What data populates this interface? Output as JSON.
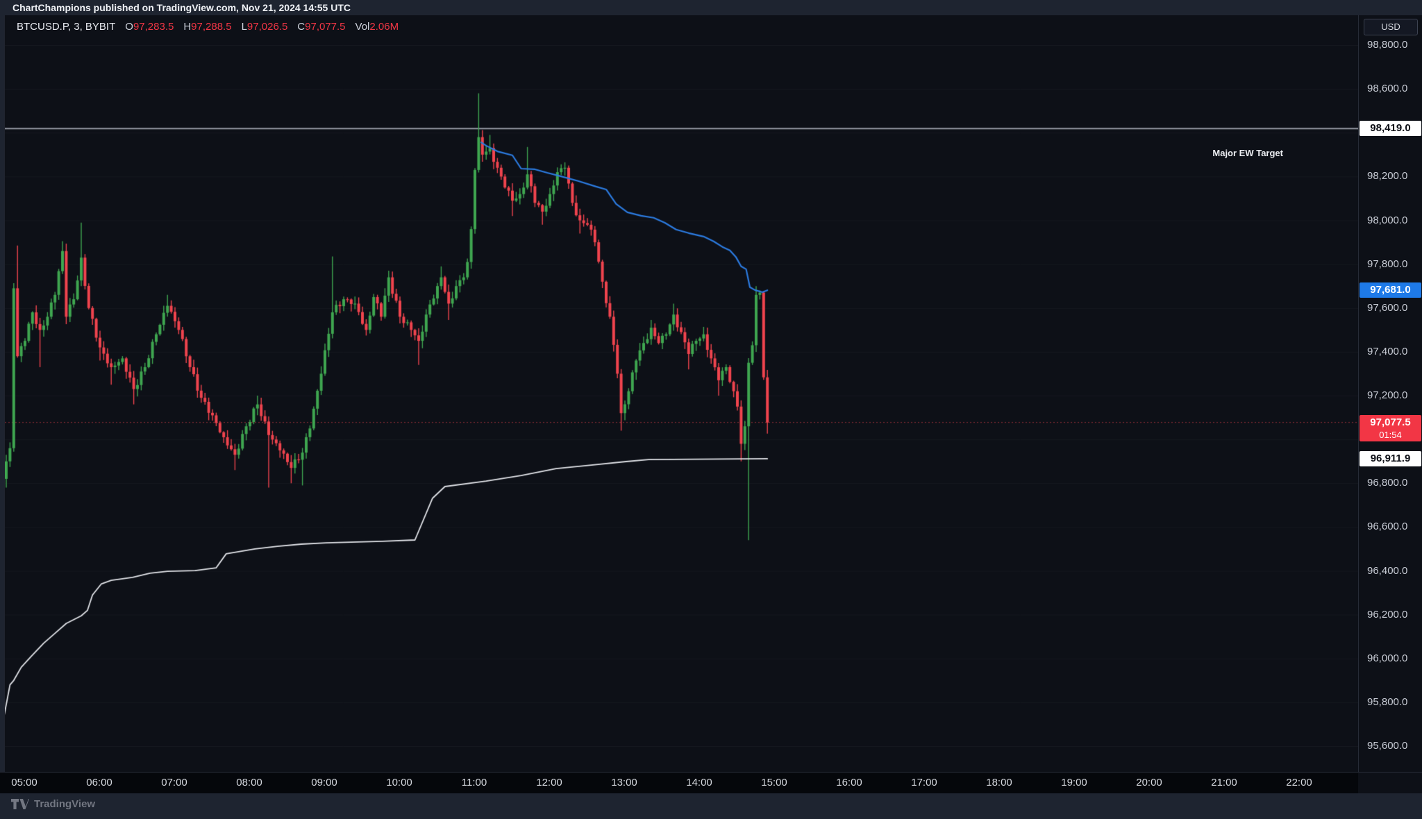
{
  "publish_bar": {
    "text": "ChartChampions published on TradingView.com, Nov 21, 2024 14:55 UTC"
  },
  "symbol_line": {
    "title": "BTCUSD.P, 3, BYBIT",
    "ohlc": [
      {
        "label": "O",
        "value": "97,283.5"
      },
      {
        "label": "H",
        "value": "97,288.5"
      },
      {
        "label": "L",
        "value": "97,026.5"
      },
      {
        "label": "C",
        "value": "97,077.5"
      }
    ],
    "vol_label": "Vol",
    "vol_value": "2.06M"
  },
  "annotations": {
    "ew_target_label": "Major EW Target"
  },
  "price_axis": {
    "currency": "USD",
    "ticks": [
      {
        "text": "98,800.0",
        "price": 98800
      },
      {
        "text": "98,600.0",
        "price": 98600
      },
      {
        "text": "98,200.0",
        "price": 98200
      },
      {
        "text": "98,000.0",
        "price": 98000
      },
      {
        "text": "97,800.0",
        "price": 97800
      },
      {
        "text": "97,600.0",
        "price": 97600
      },
      {
        "text": "97,400.0",
        "price": 97400
      },
      {
        "text": "97,200.0",
        "price": 97200
      },
      {
        "text": "96,800.0",
        "price": 96800
      },
      {
        "text": "96,600.0",
        "price": 96600
      },
      {
        "text": "96,400.0",
        "price": 96400
      },
      {
        "text": "96,200.0",
        "price": 96200
      },
      {
        "text": "96,000.0",
        "price": 96000
      },
      {
        "text": "95,800.0",
        "price": 95800
      },
      {
        "text": "95,600.0",
        "price": 95600
      }
    ],
    "badges": [
      {
        "name": "ew-target-price",
        "text": "98,419.0",
        "price": 98419,
        "bg": "#ffffff",
        "fg": "#0c0e15"
      },
      {
        "name": "ma-price",
        "text": "97,681.0",
        "price": 97681,
        "bg": "#1e7ae8",
        "fg": "#ffffff"
      },
      {
        "name": "last-price",
        "text": "97,077.5",
        "price": 97077.5,
        "bg": "#f23645",
        "fg": "#ffffff",
        "countdown": "01:54"
      },
      {
        "name": "oi-line-price",
        "text": "96,911.9",
        "price": 96911.9,
        "bg": "#ffffff",
        "fg": "#0c0e15"
      }
    ]
  },
  "time_axis": {
    "labels": [
      "05:00",
      "06:00",
      "07:00",
      "08:00",
      "09:00",
      "10:00",
      "11:00",
      "12:00",
      "13:00",
      "14:00",
      "15:00",
      "16:00",
      "17:00",
      "18:00",
      "19:00",
      "20:00",
      "21:00",
      "22:00"
    ]
  },
  "attribution": {
    "text": "TradingView"
  },
  "chart_data": {
    "type": "candlestick",
    "symbol": "BTCUSD.P",
    "exchange": "BYBIT",
    "interval_minutes": 3,
    "session_start": "04:45",
    "session_end": "14:54",
    "x_visible_hours": [
      "05:00",
      "23:00"
    ],
    "ylim": [
      95530,
      99005
    ],
    "grid_step": 200,
    "first_open": 96820,
    "last_candle_ohlc": {
      "open": 97283.5,
      "high": 97288.5,
      "low": 97026.5,
      "close": 97077.5
    },
    "volume_display": "2.06M",
    "levels": {
      "ew_target": 98419,
      "ew_target_label": "Major EW Target",
      "last_price": 97077.5
    },
    "colors": {
      "up": "#3fa650",
      "down": "#f0444e",
      "ma": "#2c7be0",
      "oi": "#e3e5ea",
      "ew_line": "#9498a3",
      "last_price_line": "rgba(240,68,78,0.6)"
    },
    "price_anchors": [
      [
        "04:45",
        96900,
        null,
        96780
      ],
      [
        "04:48",
        96960
      ],
      [
        "04:51",
        97690
      ],
      [
        "04:54",
        97380,
        97885
      ],
      [
        "05:00",
        97450
      ],
      [
        "05:06",
        97580
      ],
      [
        "05:12",
        97500,
        null,
        97330
      ],
      [
        "05:18",
        97560
      ],
      [
        "05:24",
        97660
      ],
      [
        "05:30",
        97860,
        97905
      ],
      [
        "05:33",
        97560
      ],
      [
        "05:39",
        97640
      ],
      [
        "05:45",
        97830,
        97990
      ],
      [
        "05:51",
        97600
      ],
      [
        "06:00",
        97420,
        null,
        97360
      ],
      [
        "06:09",
        97330,
        null,
        97250
      ],
      [
        "06:18",
        97370
      ],
      [
        "06:27",
        97230,
        null,
        97160
      ],
      [
        "06:36",
        97330
      ],
      [
        "06:45",
        97480
      ],
      [
        "06:54",
        97610,
        97660
      ],
      [
        "07:03",
        97500
      ],
      [
        "07:12",
        97330
      ],
      [
        "07:21",
        97190
      ],
      [
        "07:30",
        97110
      ],
      [
        "07:39",
        97010
      ],
      [
        "07:48",
        96930,
        null,
        96860
      ],
      [
        "07:57",
        97060
      ],
      [
        "08:06",
        97160,
        97200
      ],
      [
        "08:15",
        97020,
        null,
        96780
      ],
      [
        "08:24",
        96950
      ],
      [
        "08:33",
        96870,
        null,
        96800
      ],
      [
        "08:42",
        96940,
        null,
        96790
      ],
      [
        "08:48",
        97050
      ],
      [
        "08:57",
        97300
      ],
      [
        "09:06",
        97580,
        97835
      ],
      [
        "09:15",
        97640
      ],
      [
        "09:24",
        97620
      ],
      [
        "09:33",
        97500
      ],
      [
        "09:39",
        97650
      ],
      [
        "09:45",
        97560
      ],
      [
        "09:51",
        97740,
        97765
      ],
      [
        "10:00",
        97560
      ],
      [
        "10:09",
        97500
      ],
      [
        "10:15",
        97450,
        null,
        97340
      ],
      [
        "10:21",
        97570
      ],
      [
        "10:30",
        97700
      ],
      [
        "10:33",
        97740,
        97790
      ],
      [
        "10:39",
        97620,
        null,
        97545
      ],
      [
        "10:45",
        97700
      ],
      [
        "10:51",
        97740
      ],
      [
        "10:54",
        97810
      ],
      [
        "10:57",
        97960
      ],
      [
        "11:00",
        98230
      ],
      [
        "11:03",
        98380,
        98580
      ],
      [
        "11:06",
        98300
      ],
      [
        "11:12",
        98330,
        98390
      ],
      [
        "11:18",
        98240
      ],
      [
        "11:24",
        98150
      ],
      [
        "11:30",
        98090,
        null,
        98020
      ],
      [
        "11:36",
        98120
      ],
      [
        "11:42",
        98210,
        98335
      ],
      [
        "11:48",
        98080
      ],
      [
        "11:54",
        98040,
        null,
        97980
      ],
      [
        "12:00",
        98120
      ],
      [
        "12:06",
        98220
      ],
      [
        "12:12",
        98240,
        98265
      ],
      [
        "12:18",
        98080
      ],
      [
        "12:24",
        98000,
        null,
        97940
      ],
      [
        "12:30",
        97980
      ],
      [
        "12:36",
        97900
      ],
      [
        "12:42",
        97720
      ],
      [
        "12:48",
        97560
      ],
      [
        "12:54",
        97300
      ],
      [
        "12:57",
        97120,
        null,
        97040
      ],
      [
        "13:03",
        97220
      ],
      [
        "13:09",
        97360
      ],
      [
        "13:15",
        97440
      ],
      [
        "13:21",
        97510,
        97545
      ],
      [
        "13:27",
        97440
      ],
      [
        "13:33",
        97480
      ],
      [
        "13:39",
        97570,
        97620
      ],
      [
        "13:45",
        97490
      ],
      [
        "13:51",
        97390,
        null,
        97320
      ],
      [
        "13:57",
        97450
      ],
      [
        "14:03",
        97480
      ],
      [
        "14:09",
        97370
      ],
      [
        "14:15",
        97270,
        null,
        97200
      ],
      [
        "14:21",
        97330
      ],
      [
        "14:27",
        97220
      ],
      [
        "14:30",
        97150
      ],
      [
        "14:33",
        96980,
        null,
        96900
      ],
      [
        "14:36",
        97060
      ],
      [
        "14:39",
        97350,
        null,
        96540
      ],
      [
        "14:42",
        97430
      ],
      [
        "14:45",
        97660,
        97700
      ],
      [
        "14:48",
        97670
      ],
      [
        "14:51",
        97283.5
      ],
      [
        "14:54",
        97077.5,
        97288.5,
        97026.5
      ]
    ],
    "ma_line": [
      [
        "11:05",
        98356
      ],
      [
        "11:09",
        98341
      ],
      [
        "11:18",
        98315
      ],
      [
        "11:30",
        98297
      ],
      [
        "11:37",
        98236
      ],
      [
        "11:48",
        98233
      ],
      [
        "11:58",
        98217
      ],
      [
        "12:09",
        98201
      ],
      [
        "12:23",
        98179
      ],
      [
        "12:37",
        98154
      ],
      [
        "12:45",
        98141
      ],
      [
        "12:53",
        98075
      ],
      [
        "13:02",
        98037
      ],
      [
        "13:13",
        98021
      ],
      [
        "13:23",
        98012
      ],
      [
        "13:32",
        97989
      ],
      [
        "13:41",
        97958
      ],
      [
        "13:51",
        97942
      ],
      [
        "14:03",
        97926
      ],
      [
        "14:11",
        97904
      ],
      [
        "14:18",
        97879
      ],
      [
        "14:24",
        97863
      ],
      [
        "14:29",
        97831
      ],
      [
        "14:33",
        97790
      ],
      [
        "14:37",
        97777
      ],
      [
        "14:40",
        97695
      ],
      [
        "14:44",
        97682
      ],
      [
        "14:50",
        97672
      ],
      [
        "14:54",
        97681
      ]
    ],
    "oi_line": [
      [
        "04:43",
        95730
      ],
      [
        "04:48",
        95880
      ],
      [
        "04:51",
        95900
      ],
      [
        "04:57",
        95960
      ],
      [
        "05:05",
        96010
      ],
      [
        "05:15",
        96070
      ],
      [
        "05:25",
        96120
      ],
      [
        "05:33",
        96160
      ],
      [
        "05:45",
        96195
      ],
      [
        "05:50",
        96220
      ],
      [
        "05:54",
        96290
      ],
      [
        "06:01",
        96340
      ],
      [
        "06:09",
        96357
      ],
      [
        "06:26",
        96370
      ],
      [
        "06:40",
        96389
      ],
      [
        "06:54",
        96398
      ],
      [
        "07:16",
        96401
      ],
      [
        "07:33",
        96414
      ],
      [
        "07:41",
        96478
      ],
      [
        "08:04",
        96500
      ],
      [
        "08:22",
        96512
      ],
      [
        "08:41",
        96522
      ],
      [
        "09:01",
        96528
      ],
      [
        "09:46",
        96535
      ],
      [
        "10:12",
        96541
      ],
      [
        "10:26",
        96731
      ],
      [
        "10:36",
        96785
      ],
      [
        "11:09",
        96810
      ],
      [
        "11:37",
        96835
      ],
      [
        "12:05",
        96867
      ],
      [
        "12:33",
        96883
      ],
      [
        "13:01",
        96899
      ],
      [
        "13:19",
        96908
      ],
      [
        "14:54",
        96911.9
      ]
    ]
  }
}
